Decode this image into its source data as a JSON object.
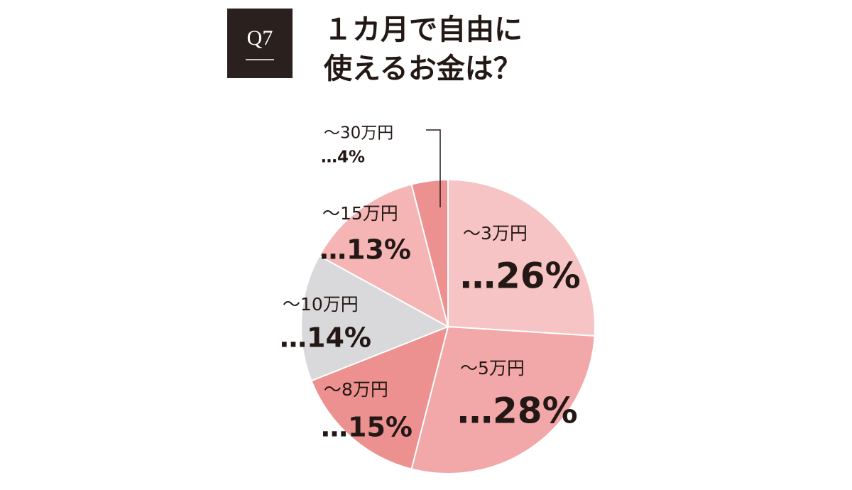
{
  "chart_data": {
    "type": "pie",
    "badge": "Q7",
    "title": [
      "１カ月で自由に",
      "使えるお金は？"
    ],
    "categories": [
      "～3万円",
      "～5万円",
      "～8万円",
      "～10万円",
      "～15万円",
      "～30万円"
    ],
    "values": [
      26,
      28,
      15,
      14,
      13,
      4
    ],
    "value_labels": [
      "…26%",
      "…28%",
      "…15%",
      "…14%",
      "…13%",
      "…4%"
    ],
    "colors": [
      "#f6c4c4",
      "#f2a8a8",
      "#ec9190",
      "#d9d9db",
      "#f4b5b4",
      "#ec9190"
    ],
    "start_angle": 0,
    "direction": "clockwise"
  }
}
